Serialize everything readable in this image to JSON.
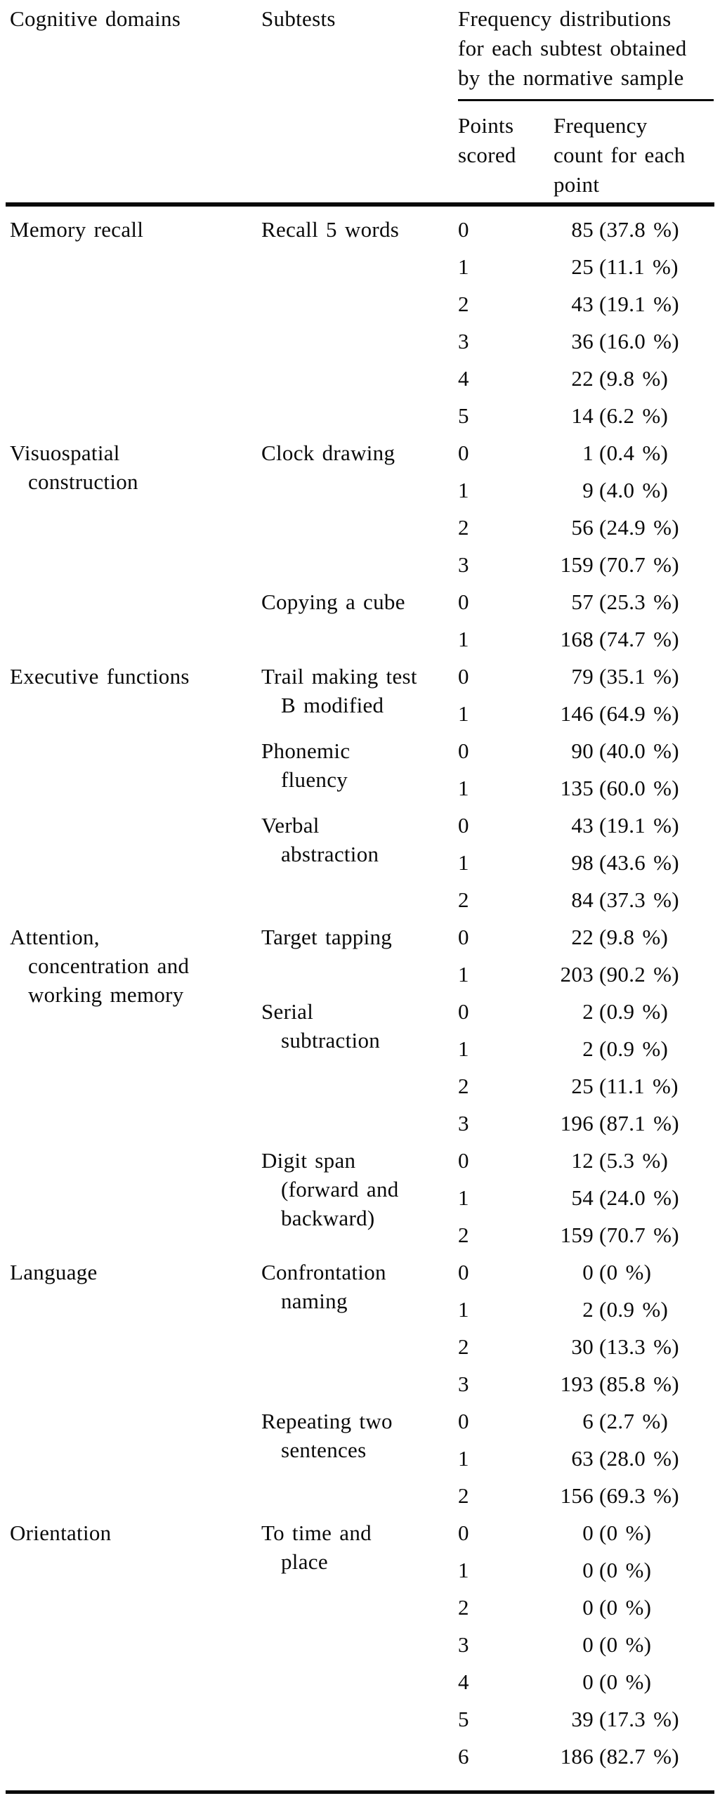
{
  "table": {
    "headers": {
      "cognitive_domains": "Cognitive domains",
      "subtests": "Subtests",
      "frequency_group": "Frequency distributions\nfor each subtest obtained\nby the normative sample",
      "points_scored": "Points\nscored",
      "frequency_count": "Frequency\ncount for each\npoint"
    },
    "groups": [
      {
        "domain": "Memory recall",
        "subtests": [
          {
            "name": "Recall 5 words",
            "rows": [
              {
                "point": "0",
                "count": "85",
                "pct": "(37.8 %)"
              },
              {
                "point": "1",
                "count": "25",
                "pct": "(11.1 %)"
              },
              {
                "point": "2",
                "count": "43",
                "pct": "(19.1 %)"
              },
              {
                "point": "3",
                "count": "36",
                "pct": "(16.0 %)"
              },
              {
                "point": "4",
                "count": "22",
                "pct": "(9.8 %)"
              },
              {
                "point": "5",
                "count": "14",
                "pct": "(6.2 %)"
              }
            ]
          }
        ]
      },
      {
        "domain": "Visuospatial\nconstruction",
        "subtests": [
          {
            "name": "Clock drawing",
            "rows": [
              {
                "point": "0",
                "count": "1",
                "pct": "(0.4 %)"
              },
              {
                "point": "1",
                "count": "9",
                "pct": "(4.0 %)"
              },
              {
                "point": "2",
                "count": "56",
                "pct": "(24.9 %)"
              },
              {
                "point": "3",
                "count": "159",
                "pct": "(70.7 %)"
              }
            ]
          },
          {
            "name": "Copying a cube",
            "rows": [
              {
                "point": "0",
                "count": "57",
                "pct": "(25.3 %)"
              },
              {
                "point": "1",
                "count": "168",
                "pct": "(74.7 %)"
              }
            ]
          }
        ]
      },
      {
        "domain": "Executive functions",
        "subtests": [
          {
            "name": "Trail making test\nB modified",
            "rows": [
              {
                "point": "0",
                "count": "79",
                "pct": "(35.1 %)"
              },
              {
                "point": "1",
                "count": "146",
                "pct": "(64.9 %)"
              }
            ]
          },
          {
            "name": "Phonemic\nfluency",
            "rows": [
              {
                "point": "0",
                "count": "90",
                "pct": "(40.0 %)"
              },
              {
                "point": "1",
                "count": "135",
                "pct": "(60.0 %)"
              }
            ]
          },
          {
            "name": "Verbal\nabstraction",
            "rows": [
              {
                "point": "0",
                "count": "43",
                "pct": "(19.1 %)"
              },
              {
                "point": "1",
                "count": "98",
                "pct": "(43.6 %)"
              },
              {
                "point": "2",
                "count": "84",
                "pct": "(37.3 %)"
              }
            ]
          }
        ]
      },
      {
        "domain": "Attention,\nconcentration and\nworking memory",
        "subtests": [
          {
            "name": "Target tapping",
            "rows": [
              {
                "point": "0",
                "count": "22",
                "pct": "(9.8 %)"
              },
              {
                "point": "1",
                "count": "203",
                "pct": "(90.2 %)"
              }
            ]
          },
          {
            "name": "Serial\nsubtraction",
            "rows": [
              {
                "point": "0",
                "count": "2",
                "pct": "(0.9 %)"
              },
              {
                "point": "1",
                "count": "2",
                "pct": "(0.9 %)"
              },
              {
                "point": "2",
                "count": "25",
                "pct": "(11.1 %)"
              },
              {
                "point": "3",
                "count": "196",
                "pct": "(87.1 %)"
              }
            ]
          },
          {
            "name": "Digit span\n(forward and\nbackward)",
            "rows": [
              {
                "point": "0",
                "count": "12",
                "pct": "(5.3 %)"
              },
              {
                "point": "1",
                "count": "54",
                "pct": "(24.0 %)"
              },
              {
                "point": "2",
                "count": "159",
                "pct": "(70.7 %)"
              }
            ]
          }
        ]
      },
      {
        "domain": "Language",
        "subtests": [
          {
            "name": "Confrontation\nnaming",
            "rows": [
              {
                "point": "0",
                "count": "0",
                "pct": "(0 %)"
              },
              {
                "point": "1",
                "count": "2",
                "pct": "(0.9 %)"
              },
              {
                "point": "2",
                "count": "30",
                "pct": "(13.3 %)"
              },
              {
                "point": "3",
                "count": "193",
                "pct": "(85.8 %)"
              }
            ]
          },
          {
            "name": "Repeating two\nsentences",
            "rows": [
              {
                "point": "0",
                "count": "6",
                "pct": "(2.7 %)"
              },
              {
                "point": "1",
                "count": "63",
                "pct": "(28.0 %)"
              },
              {
                "point": "2",
                "count": "156",
                "pct": "(69.3 %)"
              }
            ]
          }
        ]
      },
      {
        "domain": "Orientation",
        "subtests": [
          {
            "name": "To time and\nplace",
            "rows": [
              {
                "point": "0",
                "count": "0",
                "pct": "(0 %)"
              },
              {
                "point": "1",
                "count": "0",
                "pct": "(0 %)"
              },
              {
                "point": "2",
                "count": "0",
                "pct": "(0 %)"
              },
              {
                "point": "3",
                "count": "0",
                "pct": "(0 %)"
              },
              {
                "point": "4",
                "count": "0",
                "pct": "(0 %)"
              },
              {
                "point": "5",
                "count": "39",
                "pct": "(17.3 %)"
              },
              {
                "point": "6",
                "count": "186",
                "pct": "(82.7 %)"
              }
            ]
          }
        ]
      }
    ]
  }
}
